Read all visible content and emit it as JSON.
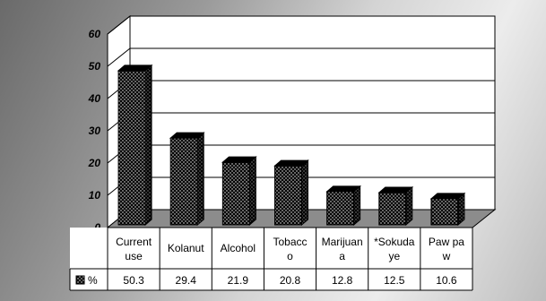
{
  "chart_data": {
    "type": "bar",
    "categories": [
      "Current use",
      "Kolanut",
      "Alcohol",
      "Tobacco",
      "Marijuana",
      "*Sokudaye",
      "Paw paw"
    ],
    "category_label_lines": [
      [
        "Current",
        "use"
      ],
      [
        "Kolanut"
      ],
      [
        "Alcohol"
      ],
      [
        "Tobacc",
        "o"
      ],
      [
        "Marijuan",
        "a"
      ],
      [
        "*Sokuda",
        "ye"
      ],
      [
        "Paw pa",
        "w"
      ]
    ],
    "series": [
      {
        "name": "%",
        "values": [
          50.3,
          29.4,
          21.9,
          20.8,
          12.8,
          12.5,
          10.6
        ]
      }
    ],
    "value_labels": [
      "50.3",
      "29.4",
      "21.9",
      "20.8",
      "12.8",
      "12.5",
      "10.6"
    ],
    "ylim": [
      0,
      60
    ],
    "yticks": [
      "0",
      "10",
      "20",
      "30",
      "40",
      "50",
      "60"
    ],
    "grid": true,
    "legend": "data-table",
    "style": "3d-dotted-bars"
  }
}
